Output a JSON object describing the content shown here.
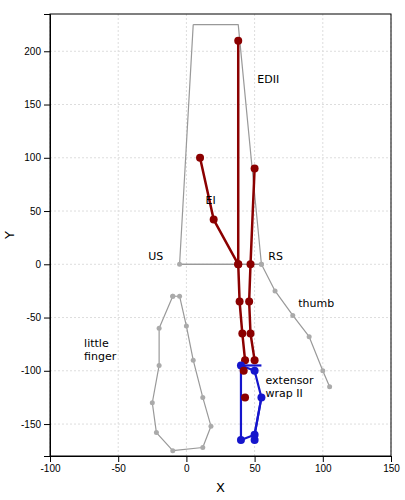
{
  "chart_data": {
    "type": "line",
    "xlabel": "X",
    "ylabel": "Y",
    "xlim": [
      -100,
      150
    ],
    "ylim": [
      -180,
      235
    ],
    "xticks": [
      -100,
      -50,
      0,
      50,
      100,
      150
    ],
    "yticks": [
      -150,
      -100,
      -50,
      0,
      50,
      100,
      150,
      200
    ],
    "grid": true,
    "series": [
      {
        "type": "line",
        "color": "#999999",
        "x": [
          5,
          38,
          55,
          -5,
          5
        ],
        "values": [
          225,
          225,
          0,
          0,
          225
        ]
      },
      {
        "type": "line",
        "color": "#999999",
        "x": [
          -10,
          -20,
          -20,
          -25,
          -22,
          -10,
          12,
          18,
          12,
          5,
          0,
          -5,
          -10
        ],
        "values": [
          -30,
          -60,
          -95,
          -130,
          -158,
          -175,
          -172,
          -152,
          -125,
          -90,
          -58,
          -30,
          -30
        ]
      },
      {
        "type": "scatter",
        "marker": "circle",
        "color": "#AAAAAA",
        "x": [
          -10,
          -20,
          -20,
          -25,
          -22,
          -10,
          12,
          18,
          12,
          5,
          0,
          -5,
          -10
        ],
        "values": [
          -30,
          -60,
          -95,
          -130,
          -158,
          -175,
          -172,
          -152,
          -125,
          -90,
          -58,
          -30,
          -30
        ]
      },
      {
        "type": "line",
        "color": "#999999",
        "x": [
          55,
          65,
          78,
          90,
          100,
          105
        ],
        "values": [
          0,
          -25,
          -48,
          -68,
          -100,
          -115
        ]
      },
      {
        "type": "scatter",
        "marker": "circle",
        "color": "#AAAAAA",
        "x": [
          55,
          65,
          78,
          90,
          100,
          105
        ],
        "values": [
          0,
          -25,
          -48,
          -68,
          -100,
          -115
        ]
      },
      {
        "type": "line",
        "color": "#999999",
        "x": [
          -5,
          55
        ],
        "values": [
          0,
          0
        ]
      },
      {
        "type": "scatter",
        "marker": "circle",
        "color": "#AAAAAA",
        "x": [
          -5,
          55
        ],
        "values": [
          0,
          0
        ]
      },
      {
        "type": "line",
        "marker": "circle",
        "color": "#8B0000",
        "x": [
          38,
          38,
          39,
          41,
          43
        ],
        "values": [
          210,
          0,
          -35,
          -65,
          -90
        ]
      },
      {
        "type": "line",
        "marker": "circle",
        "color": "#8B0000",
        "x": [
          10,
          20,
          38
        ],
        "values": [
          100,
          42,
          0
        ]
      },
      {
        "type": "line",
        "marker": "circle",
        "color": "#8B0000",
        "x": [
          50,
          47,
          46,
          47,
          50
        ],
        "values": [
          90,
          0,
          -35,
          -65,
          -90
        ]
      },
      {
        "type": "line",
        "color": "#1515CC",
        "x": [
          40,
          50,
          55,
          50,
          40
        ],
        "values": [
          -95,
          -100,
          -125,
          -160,
          -165
        ]
      },
      {
        "type": "line",
        "color": "#1515CC",
        "x": [
          55,
          50
        ],
        "values": [
          -125,
          -160
        ]
      },
      {
        "type": "line",
        "color": "#1515CC",
        "x": [
          40,
          55
        ],
        "values": [
          -95,
          -95
        ]
      },
      {
        "type": "line",
        "color": "#1515CC",
        "x": [
          40,
          40
        ],
        "values": [
          -95,
          -165
        ]
      },
      {
        "type": "scatter",
        "marker": "circle",
        "color": "#1515CC",
        "x": [
          50
        ],
        "values": [
          -165
        ]
      },
      {
        "type": "scatter",
        "marker": "circle",
        "color": "#1515CC",
        "x": [
          40,
          50,
          55,
          50,
          40
        ],
        "values": [
          -95,
          -100,
          -125,
          -160,
          -165
        ]
      },
      {
        "type": "scatter",
        "marker": "circle",
        "color": "#8B0000",
        "x": [
          42,
          43
        ],
        "values": [
          -100,
          -125
        ]
      }
    ],
    "annotations": [
      {
        "text": "EDII",
        "x": 52,
        "y": 170
      },
      {
        "text": "EI",
        "x": 14,
        "y": 57
      },
      {
        "text": "US",
        "x": -28,
        "y": 4
      },
      {
        "text": "RS",
        "x": 60,
        "y": 4
      },
      {
        "text": "thumb",
        "x": 82,
        "y": -40
      },
      {
        "text": "little\nfinger",
        "x": -75,
        "y": -90
      },
      {
        "text": "extensor\nwrap II",
        "x": 58,
        "y": -125
      }
    ]
  }
}
